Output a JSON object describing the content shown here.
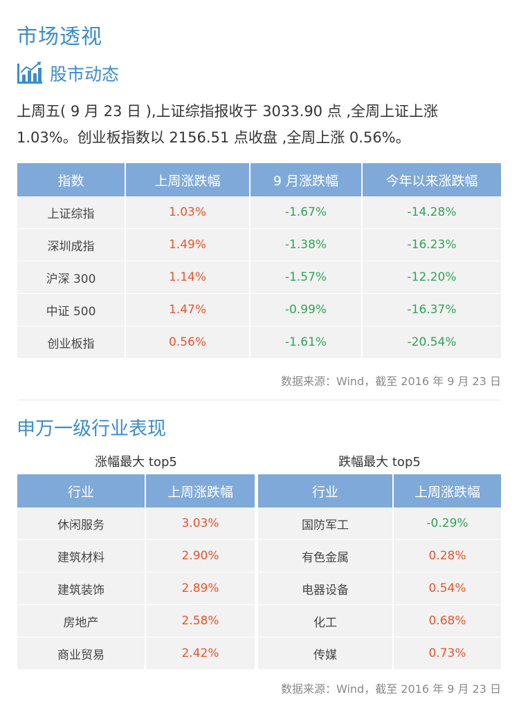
{
  "header": {
    "title": "市场透视",
    "subtitle": "股市动态",
    "subtitle_icon": "bar-chart-trend-icon",
    "accent_color": "#3a8ccc"
  },
  "summary": "上周五( 9 月 23 日 ),上证综指报收于 3033.90 点 ,全周上证上涨 1.03%。创业板指数以 2156.51 点收盘 ,全周上涨 0.56%。",
  "index_table": {
    "headers": [
      "指数",
      "上周涨跌幅",
      "9 月涨跌幅",
      "今年以来涨跌幅"
    ],
    "rows": [
      {
        "name": "上证综指",
        "week": "1.03%",
        "month": "-1.67%",
        "ytd": "-14.28%"
      },
      {
        "name": "深圳成指",
        "week": "1.49%",
        "month": "-1.38%",
        "ytd": "-16.23%"
      },
      {
        "name": "沪深 300",
        "week": "1.14%",
        "month": "-1.57%",
        "ytd": "-12.20%"
      },
      {
        "name": "中证 500",
        "week": "1.47%",
        "month": "-0.99%",
        "ytd": "-16.37%"
      },
      {
        "name": "创业板指",
        "week": "0.56%",
        "month": "-1.61%",
        "ytd": "-20.54%"
      }
    ],
    "source": "数据来源：Wind，截至 2016 年 9 月 23 日"
  },
  "industry": {
    "title": "申万一级行业表现",
    "gain_caption": "涨幅最大 top5",
    "loss_caption": "跌幅最大 top5",
    "headers": [
      "行业",
      "上周涨跌幅"
    ],
    "gainers": [
      {
        "name": "休闲服务",
        "value": "3.03%"
      },
      {
        "name": "建筑材料",
        "value": "2.90%"
      },
      {
        "name": "建筑装饰",
        "value": "2.89%"
      },
      {
        "name": "房地产",
        "value": "2.58%"
      },
      {
        "name": "商业贸易",
        "value": "2.42%"
      }
    ],
    "losers": [
      {
        "name": "国防军工",
        "value": "-0.29%"
      },
      {
        "name": "有色金属",
        "value": "0.28%"
      },
      {
        "name": "电器设备",
        "value": "0.54%"
      },
      {
        "name": "化工",
        "value": "0.68%"
      },
      {
        "name": "传媒",
        "value": "0.73%"
      }
    ],
    "source": "数据来源：Wind，截至 2016 年 9 月 23 日"
  },
  "colors": {
    "positive": "#e8542b",
    "negative": "#2fa354",
    "table_header": "#7fa9d8",
    "table_cell": "#f2f2f2"
  }
}
